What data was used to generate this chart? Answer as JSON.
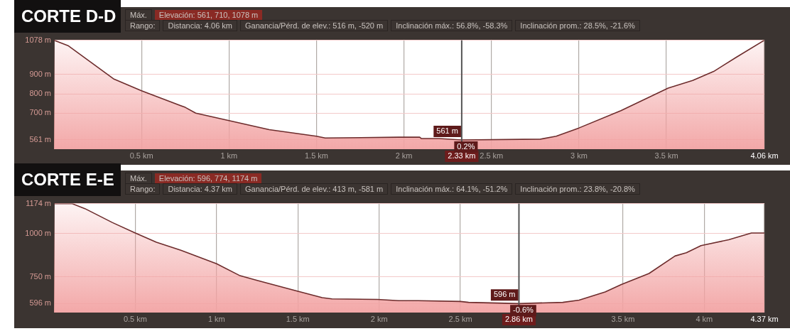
{
  "chart_data": [
    {
      "type": "area",
      "title": "CORTE D-D",
      "annotations": [
        "Máx.",
        "Elevación: 561, 710, 1078 m",
        "Rango:",
        "Distancia: 4.06 km",
        "Ganancia/Pérd. de elev.: 516 m, -520 m",
        "Inclinación máx.: 56.8%, -58.3%",
        "Inclinación prom.: 28.5%, -21.6%",
        "561 m",
        "0.2%"
      ],
      "x": [
        0,
        0.08,
        0.34,
        0.5,
        0.75,
        0.81,
        1.0,
        1.23,
        1.5,
        1.55,
        1.97,
        2.09,
        2.1,
        2.2,
        2.33,
        2.78,
        2.87,
        3.0,
        3.24,
        3.51,
        3.65,
        3.77,
        3.9,
        4.06
      ],
      "values": [
        1078,
        1050,
        878,
        816,
        730,
        700,
        661,
        614,
        580,
        571,
        575,
        575,
        568,
        568,
        561,
        565,
        580,
        623,
        713,
        830,
        869,
        916,
        990,
        1078
      ],
      "color": "#f2a3a3",
      "xlim": [
        0,
        4.06
      ],
      "ylim": [
        513,
        1078
      ],
      "xticks": [
        {
          "value": 0.5,
          "label": "0.5 km"
        },
        {
          "value": 1,
          "label": "1 km"
        },
        {
          "value": 1.5,
          "label": "1.5 km"
        },
        {
          "value": 2,
          "label": "2 km"
        },
        {
          "value": 2.5,
          "label": "2.5 km"
        },
        {
          "value": 3,
          "label": "3 km"
        },
        {
          "value": 3.5,
          "label": "3.5 km"
        },
        {
          "value": 4.06,
          "label": "4.06 km"
        }
      ],
      "yticks": [
        {
          "value": 561,
          "label": "561 m"
        },
        {
          "value": 700,
          "label": "700 m"
        },
        {
          "value": 800,
          "label": "800 m"
        },
        {
          "value": 900,
          "label": "900 m"
        },
        {
          "value": 1078,
          "label": "1078 m"
        }
      ],
      "grid": true,
      "ref_lines": [
        {
          "axis": "x",
          "value": 2.33,
          "label": "2.33 km"
        }
      ]
    },
    {
      "type": "area",
      "title": "CORTE E-E",
      "annotations": [
        "Máx.",
        "Elevación: 596, 774, 1174 m",
        "Rango:",
        "Distancia: 4.37 km",
        "Ganancia/Pérd. de elev.: 413 m, -581 m",
        "Inclinación máx.: 64.1%, -51.2%",
        "Inclinación prom.: 23.8%, -20.8%",
        "596 m",
        "-0.6%"
      ],
      "x": [
        0,
        0.11,
        0.19,
        0.36,
        0.5,
        0.63,
        0.78,
        1.0,
        1.14,
        1.25,
        1.5,
        1.65,
        1.71,
        1.99,
        2.12,
        2.24,
        2.5,
        2.55,
        2.86,
        3.13,
        3.23,
        3.39,
        3.49,
        3.66,
        3.82,
        3.89,
        3.98,
        4.15,
        4.29,
        4.37
      ],
      "values": [
        1174,
        1174,
        1145,
        1064,
        1004,
        951,
        904,
        826,
        759,
        730,
        667,
        630,
        623,
        620,
        613,
        613,
        608,
        603,
        596,
        603,
        616,
        663,
        706,
        770,
        871,
        890,
        931,
        965,
        1004,
        1004
      ],
      "color": "#f2a3a3",
      "xlim": [
        0,
        4.37
      ],
      "ylim": [
        544,
        1174
      ],
      "xticks": [
        {
          "value": 0.5,
          "label": "0.5 km"
        },
        {
          "value": 1,
          "label": "1 km"
        },
        {
          "value": 1.5,
          "label": "1.5 km"
        },
        {
          "value": 2,
          "label": "2 km"
        },
        {
          "value": 2.5,
          "label": "2.5 km"
        },
        {
          "value": 3.5,
          "label": "3.5 km"
        },
        {
          "value": 4,
          "label": "4 km"
        },
        {
          "value": 4.37,
          "label": "4.37 km"
        }
      ],
      "yticks": [
        {
          "value": 596,
          "label": "596 m"
        },
        {
          "value": 750,
          "label": "750 m"
        },
        {
          "value": 1000,
          "label": "1000 m"
        },
        {
          "value": 1174,
          "label": "1174 m"
        }
      ],
      "grid": true,
      "ref_lines": [
        {
          "axis": "x",
          "value": 2.86,
          "label": "2.86 km"
        }
      ]
    }
  ]
}
